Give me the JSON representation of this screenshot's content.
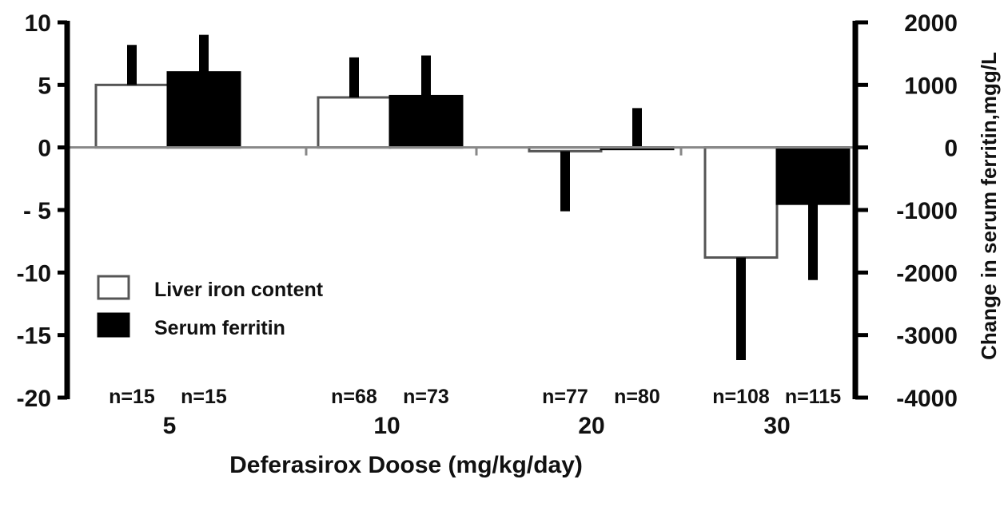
{
  "chart_data": {
    "type": "bar",
    "xlabel": "Deferasirox Doose (mg/kg/day)",
    "ylabel_left": "",
    "ylabel_right": "Change in serum ferritin,mgg/L",
    "categories": [
      "5",
      "10",
      "20",
      "30"
    ],
    "ylim_left": [
      -20,
      10
    ],
    "yticks_left": [
      "10",
      "5",
      "0",
      "- 5",
      "-10",
      "-15",
      "-20"
    ],
    "ylim_right": [
      -4000,
      2000
    ],
    "yticks_right": [
      "2000",
      "1000",
      "0",
      "-1000",
      "-2000",
      "-3000",
      "-4000"
    ],
    "legend_position": "lower-left",
    "series": [
      {
        "name": "Liver iron content",
        "axis": "left",
        "fill": "#ffffff",
        "values": [
          5.0,
          4.0,
          -0.3,
          -8.8
        ],
        "error": [
          3.2,
          3.2,
          4.8,
          8.2
        ],
        "n": [
          "n=15",
          "n=68",
          "n=77",
          "n=108"
        ]
      },
      {
        "name": "Serum ferritin",
        "axis": "right",
        "fill": "#000000",
        "values": [
          1200,
          820,
          0,
          -900
        ],
        "error": [
          600,
          650,
          630,
          1220
        ],
        "n": [
          "n=15",
          "n=73",
          "n=80",
          "n=115"
        ]
      }
    ]
  }
}
